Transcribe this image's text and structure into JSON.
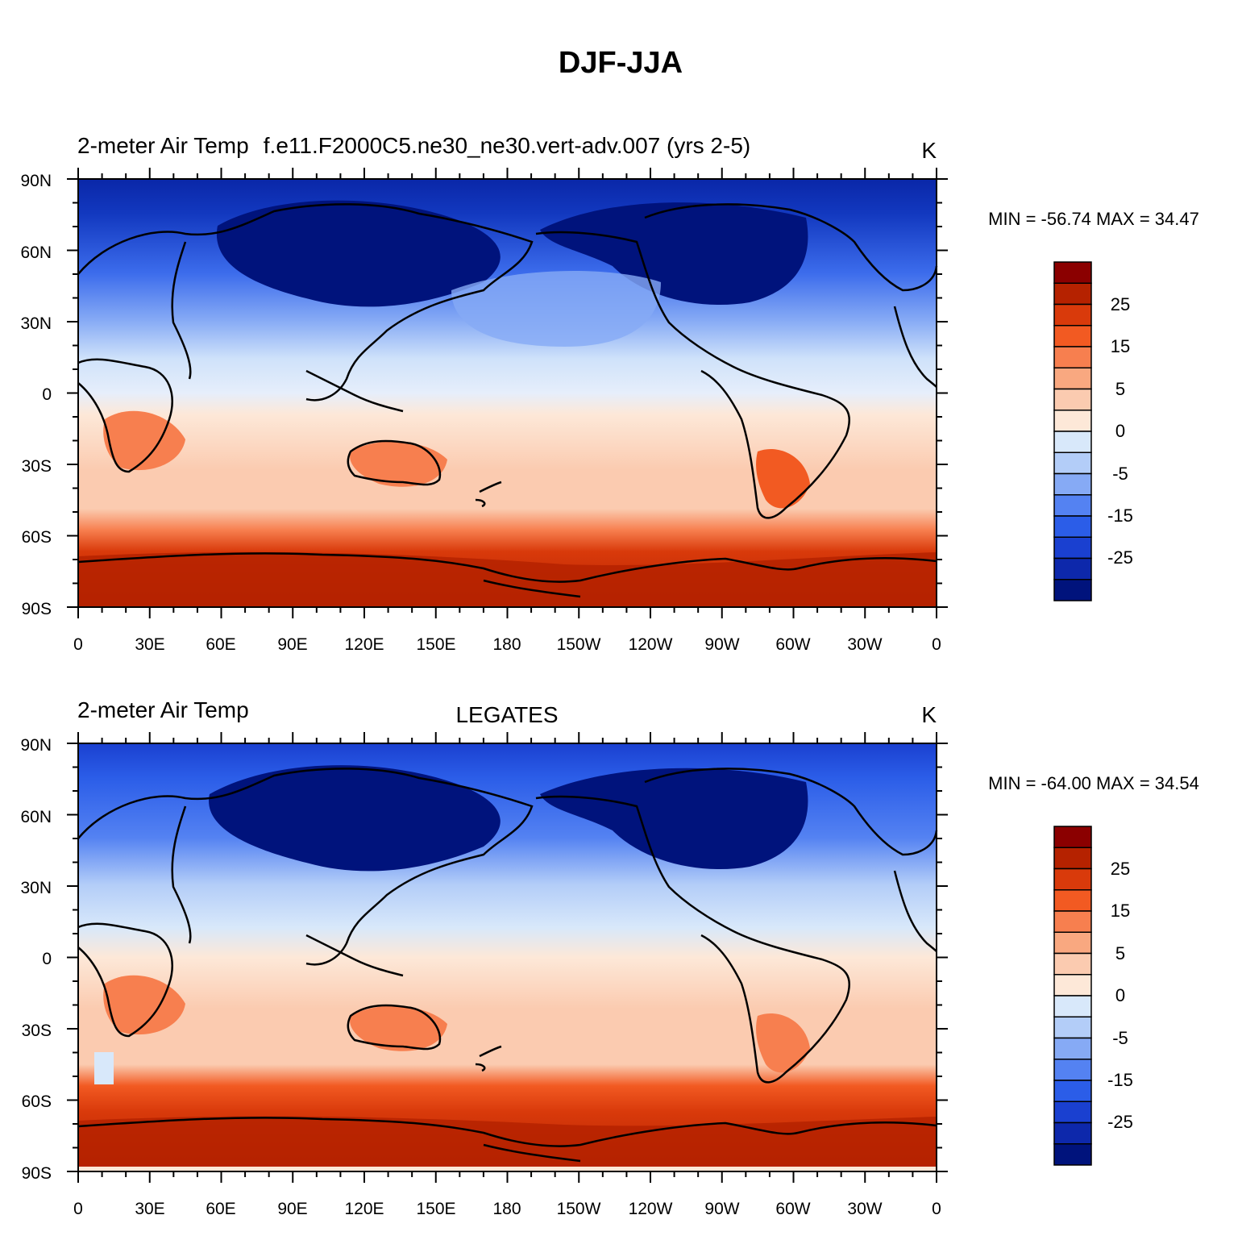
{
  "figure": {
    "title": "DJF-JJA"
  },
  "panels": [
    {
      "left_string": "2-meter Air Temp",
      "center_string": "f.e11.F2000C5.ne30_ne30.vert-adv.007 (yrs 2-5)",
      "right_string": "K",
      "stats": "MIN = -56.74 MAX =  34.47"
    },
    {
      "left_string": "2-meter Air Temp",
      "center_string": "LEGATES",
      "right_string": "K",
      "stats": "MIN = -64.00 MAX =  34.54"
    }
  ],
  "axes": {
    "lat_labels": [
      "90N",
      "60N",
      "30N",
      "0",
      "30S",
      "60S",
      "90S"
    ],
    "lon_labels": [
      "0",
      "30E",
      "60E",
      "90E",
      "120E",
      "150E",
      "180",
      "150W",
      "120W",
      "90W",
      "60W",
      "30W",
      "0"
    ]
  },
  "colorbar": {
    "labels": [
      "25",
      "15",
      "5",
      "0",
      "-5",
      "-15",
      "-25"
    ],
    "colors": [
      "#8b0000",
      "#b52200",
      "#d93a0b",
      "#f25a22",
      "#f77f4f",
      "#f9a880",
      "#fbcbb0",
      "#fde8d8",
      "#d8e8fa",
      "#b3cdf8",
      "#86aaf5",
      "#5482f2",
      "#2b5de8",
      "#1a40d0",
      "#0d28ab",
      "#00137c"
    ]
  }
}
